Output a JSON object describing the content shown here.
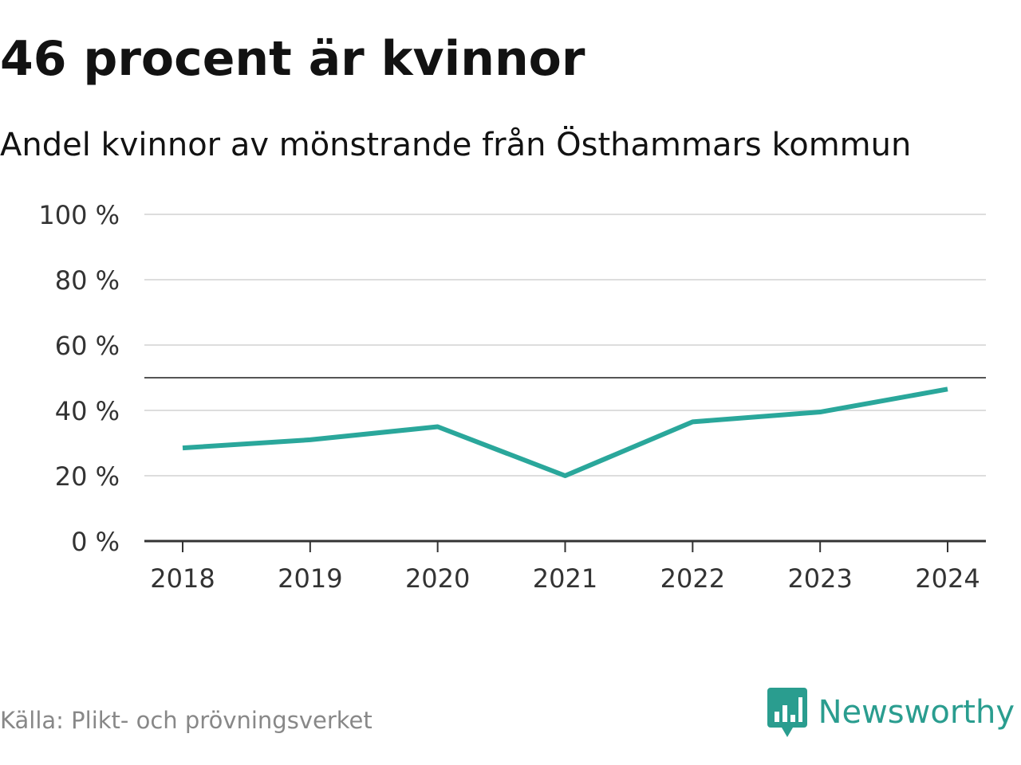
{
  "title": "46 procent är kvinnor",
  "subtitle": "Andel kvinnor av mönstrande från Östhammars kommun",
  "source": "Källa: Plikt- och prövningsverket",
  "brand": {
    "name": "Newsworthy",
    "color": "#2a9d8f",
    "icon": "bar-chart-speech-bubble-icon"
  },
  "chart_data": {
    "type": "line",
    "title": "46 procent är kvinnor",
    "subtitle": "Andel kvinnor av mönstrande från Östhammars kommun",
    "xlabel": "",
    "ylabel": "",
    "categories": [
      "2018",
      "2019",
      "2020",
      "2021",
      "2022",
      "2023",
      "2024"
    ],
    "series": [
      {
        "name": "Andel kvinnor",
        "values": [
          28.5,
          31,
          35,
          20,
          36.5,
          39.5,
          46.5
        ],
        "color": "#2aa79b"
      }
    ],
    "ylim": [
      0,
      100
    ],
    "yticks": [
      0,
      20,
      40,
      60,
      80,
      100
    ],
    "ytick_labels": [
      "0 %",
      "20 %",
      "40 %",
      "60 %",
      "80 %",
      "100 %"
    ],
    "reference_line": 50,
    "grid": true
  }
}
